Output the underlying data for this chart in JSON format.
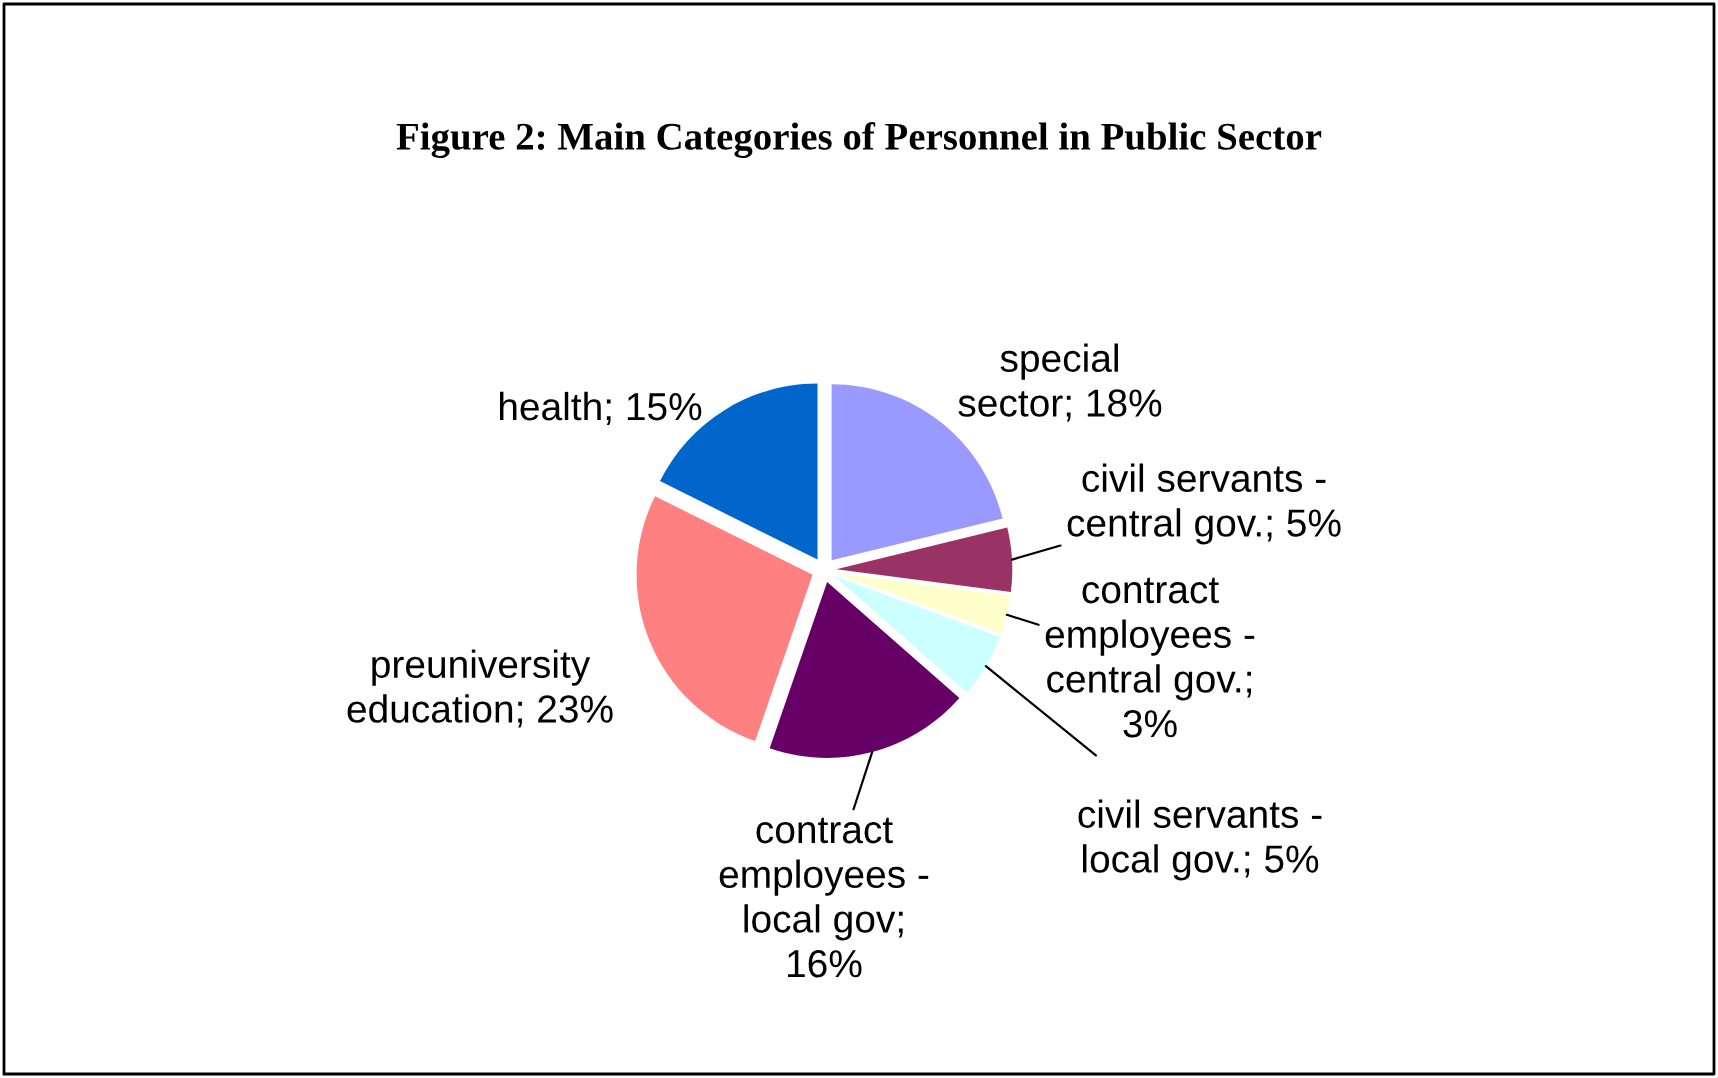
{
  "chart_data": {
    "type": "pie",
    "title": "Figure 2: Main Categories of Personnel in Public Sector",
    "categories": [
      "special sector; 18%",
      "civil servants - central gov.; 5%",
      "contract employees - central gov.; 3%",
      "civil servants - local gov.; 5%",
      "contract employees - local gov; 16%",
      "preuniversity education; 23%",
      "health; 15%"
    ],
    "values": [
      18,
      5,
      3,
      5,
      16,
      23,
      15
    ],
    "colors": [
      "#9999ff",
      "#993366",
      "#ffffcc",
      "#ccffff",
      "#660066",
      "#ff8080",
      "#0066cc"
    ],
    "legend": false
  }
}
